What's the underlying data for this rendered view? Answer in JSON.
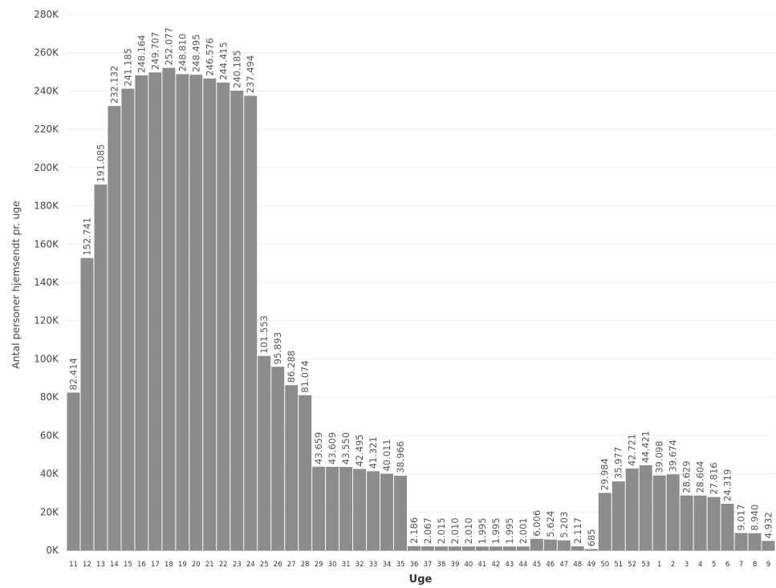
{
  "chart_data": {
    "type": "bar",
    "xlabel": "Uge",
    "ylabel": "Antal personer hjemsendt pr. uge",
    "ylim": [
      0,
      280000
    ],
    "grid": true,
    "bar_color": "#8c8c8c",
    "yticks": [
      "0K",
      "20K",
      "40K",
      "60K",
      "80K",
      "100K",
      "120K",
      "140K",
      "160K",
      "180K",
      "200K",
      "220K",
      "240K",
      "260K",
      "280K"
    ],
    "categories": [
      "11",
      "12",
      "13",
      "14",
      "15",
      "16",
      "17",
      "18",
      "19",
      "20",
      "21",
      "22",
      "23",
      "24",
      "25",
      "26",
      "27",
      "28",
      "29",
      "30",
      "31",
      "32",
      "33",
      "34",
      "35",
      "36",
      "37",
      "38",
      "39",
      "40",
      "41",
      "42",
      "43",
      "44",
      "45",
      "46",
      "47",
      "48",
      "49",
      "50",
      "51",
      "52",
      "53",
      "1",
      "2",
      "3",
      "4",
      "5",
      "6",
      "7",
      "8",
      "9"
    ],
    "values": [
      82414,
      152741,
      191085,
      232132,
      241185,
      248164,
      249707,
      252077,
      248810,
      248495,
      246576,
      244415,
      240185,
      237494,
      101553,
      95893,
      86288,
      81074,
      43659,
      43609,
      43550,
      42495,
      41321,
      40011,
      38966,
      2186,
      2067,
      2015,
      2010,
      2010,
      1995,
      1995,
      1995,
      2001,
      6006,
      5624,
      5203,
      2117,
      685,
      29984,
      35977,
      42721,
      44421,
      39098,
      39674,
      28629,
      28604,
      27816,
      24319,
      9017,
      8940,
      4932
    ],
    "value_labels": [
      "82.414",
      "152.741",
      "191.085",
      "232.132",
      "241.185",
      "248.164",
      "249.707",
      "252.077",
      "248.810",
      "248.495",
      "246.576",
      "244.415",
      "240.185",
      "237.494",
      "101.553",
      "95.893",
      "86.288",
      "81.074",
      "43.659",
      "43.609",
      "43.550",
      "42.495",
      "41.321",
      "40.011",
      "38.966",
      "2.186",
      "2.067",
      "2.015",
      "2.010",
      "2.010",
      "1.995",
      "1.995",
      "1.995",
      "2.001",
      "6.006",
      "5.624",
      "5.203",
      "2.117",
      "685",
      "29.984",
      "35.977",
      "42.721",
      "44.421",
      "39.098",
      "39.674",
      "28.629",
      "28.604",
      "27.816",
      "24.319",
      "9.017",
      "8.940",
      "4.932"
    ]
  }
}
